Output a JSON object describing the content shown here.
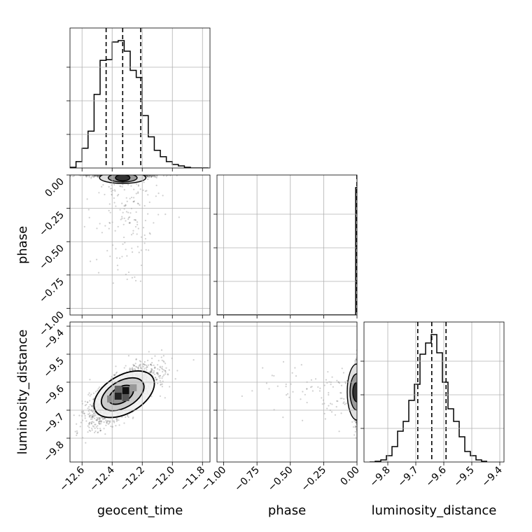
{
  "chart_data": {
    "type": "corner",
    "parameters": [
      "geocent_time",
      "phase",
      "luminosity_distance"
    ],
    "grid": true,
    "ranges": {
      "geocent_time": [
        -12.68,
        -11.75
      ],
      "phase": [
        -1.05,
        0.0
      ],
      "luminosity_distance": [
        -9.885,
        -9.385
      ]
    },
    "ticks": {
      "geocent_time": {
        "values": [
          -12.6,
          -12.4,
          -12.2,
          -12.0,
          -11.8
        ],
        "labels": [
          "−12.6",
          "−12.4",
          "−12.2",
          "−12.0",
          "−11.8"
        ]
      },
      "phase": {
        "values": [
          -1.0,
          -0.75,
          -0.5,
          -0.25,
          0.0
        ],
        "labels": [
          "−1.00",
          "−0.75",
          "−0.50",
          "−0.25",
          "0.00"
        ]
      },
      "luminosity_distance": {
        "values": [
          -9.8,
          -9.7,
          -9.6,
          -9.5,
          -9.4
        ],
        "labels": [
          "−9.8",
          "−9.7",
          "−9.6",
          "−9.5",
          "−9.4"
        ]
      }
    },
    "histograms": {
      "geocent_time": {
        "bin_edges": [
          -12.68,
          -12.64,
          -12.6,
          -12.56,
          -12.52,
          -12.48,
          -12.44,
          -12.4,
          -12.36,
          -12.32,
          -12.28,
          -12.24,
          -12.2,
          -12.16,
          -12.12,
          -12.08,
          -12.04,
          -12.0,
          -11.96,
          -11.92,
          -11.88,
          -11.84,
          -11.8,
          -11.76
        ],
        "counts": [
          1,
          9,
          28,
          52,
          104,
          152,
          153,
          178,
          180,
          165,
          138,
          128,
          74,
          44,
          25,
          16,
          9,
          5,
          3,
          1,
          0,
          0,
          0
        ],
        "quantiles": [
          -12.44,
          -12.33,
          -12.21
        ]
      },
      "phase": {
        "bin_edges": [
          -1.05,
          -0.05,
          -0.01,
          0.0
        ],
        "counts": [
          0,
          0,
          100
        ],
        "quantiles": [
          -0.001
        ]
      },
      "luminosity_distance": {
        "bin_edges": [
          -9.865,
          -9.845,
          -9.825,
          -9.805,
          -9.785,
          -9.765,
          -9.745,
          -9.725,
          -9.705,
          -9.685,
          -9.665,
          -9.645,
          -9.625,
          -9.605,
          -9.585,
          -9.565,
          -9.545,
          -9.525,
          -9.505,
          -9.485,
          -9.465,
          -9.445
        ],
        "counts": [
          0,
          1,
          3,
          9,
          22,
          44,
          58,
          88,
          111,
          154,
          170,
          182,
          156,
          114,
          76,
          58,
          36,
          15,
          9,
          3,
          1
        ],
        "quantiles": [
          -9.693,
          -9.643,
          -9.592
        ]
      }
    },
    "scatter": [
      {
        "x": "geocent_time",
        "y": "phase",
        "center": [
          -12.33,
          -0.003
        ],
        "spread": [
          0.11,
          0.0
        ],
        "outliers": 160
      },
      {
        "x": "geocent_time",
        "y": "luminosity_distance",
        "center": [
          -12.33,
          -9.643
        ],
        "spread": [
          0.11,
          0.05
        ],
        "correlation": 0.72
      },
      {
        "x": "phase",
        "y": "luminosity_distance",
        "center": [
          -0.003,
          -9.643
        ],
        "spread": [
          0.0,
          0.05
        ],
        "outliers": 120
      }
    ],
    "contours": {
      "geocent_time|luminosity_distance": [
        {
          "cx": -12.32,
          "cy": -9.643,
          "rx": 0.22,
          "ry": 0.135,
          "angle_deg": -30
        },
        {
          "cx": -12.33,
          "cy": -9.643,
          "rx": 0.155,
          "ry": 0.095,
          "angle_deg": -30
        },
        {
          "cx": -12.34,
          "cy": -9.645,
          "rx": 0.09,
          "ry": 0.055,
          "angle_deg": -30
        }
      ]
    }
  }
}
